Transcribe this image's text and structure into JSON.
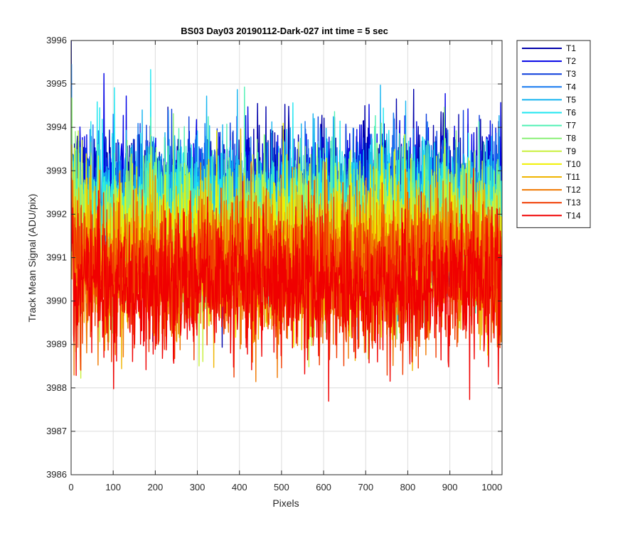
{
  "chart_data": {
    "type": "line",
    "title": "BS03 Day03 20190112-Dark-027 int time = 5 sec",
    "xlabel": "Pixels",
    "ylabel": "Track Mean Signal (ADU/pix)",
    "xlim": [
      0,
      1024
    ],
    "ylim": [
      3986,
      3996
    ],
    "xticks": [
      0,
      100,
      200,
      300,
      400,
      500,
      600,
      700,
      800,
      900,
      1000
    ],
    "yticks": [
      3986,
      3987,
      3988,
      3989,
      3990,
      3991,
      3992,
      3993,
      3994,
      3995,
      3996
    ],
    "grid": true,
    "legend_position": "outside-top-right",
    "n_points": 1024,
    "series": [
      {
        "name": "T1",
        "color": "#0000aa",
        "mean": 3992.5,
        "std": 0.85
      },
      {
        "name": "T2",
        "color": "#0000e6",
        "mean": 3992.3,
        "std": 0.85
      },
      {
        "name": "T3",
        "color": "#0a3cdc",
        "mean": 3992.2,
        "std": 0.85
      },
      {
        "name": "T4",
        "color": "#1478f0",
        "mean": 3992.1,
        "std": 0.85
      },
      {
        "name": "T5",
        "color": "#14b4f0",
        "mean": 3992.0,
        "std": 0.85
      },
      {
        "name": "T6",
        "color": "#1ee6f0",
        "mean": 3991.9,
        "std": 0.85
      },
      {
        "name": "T7",
        "color": "#50f0b4",
        "mean": 3991.7,
        "std": 0.85
      },
      {
        "name": "T8",
        "color": "#8cf078",
        "mean": 3991.6,
        "std": 0.85
      },
      {
        "name": "T9",
        "color": "#c8f03c",
        "mean": 3991.4,
        "std": 0.85
      },
      {
        "name": "T10",
        "color": "#f0f000",
        "mean": 3991.1,
        "std": 0.85
      },
      {
        "name": "T11",
        "color": "#f0b400",
        "mean": 3991.0,
        "std": 0.85
      },
      {
        "name": "T12",
        "color": "#f07800",
        "mean": 3990.8,
        "std": 0.85
      },
      {
        "name": "T13",
        "color": "#f03c00",
        "mean": 3990.6,
        "std": 0.85
      },
      {
        "name": "T14",
        "color": "#f00000",
        "mean": 3990.3,
        "std": 0.8
      }
    ]
  }
}
